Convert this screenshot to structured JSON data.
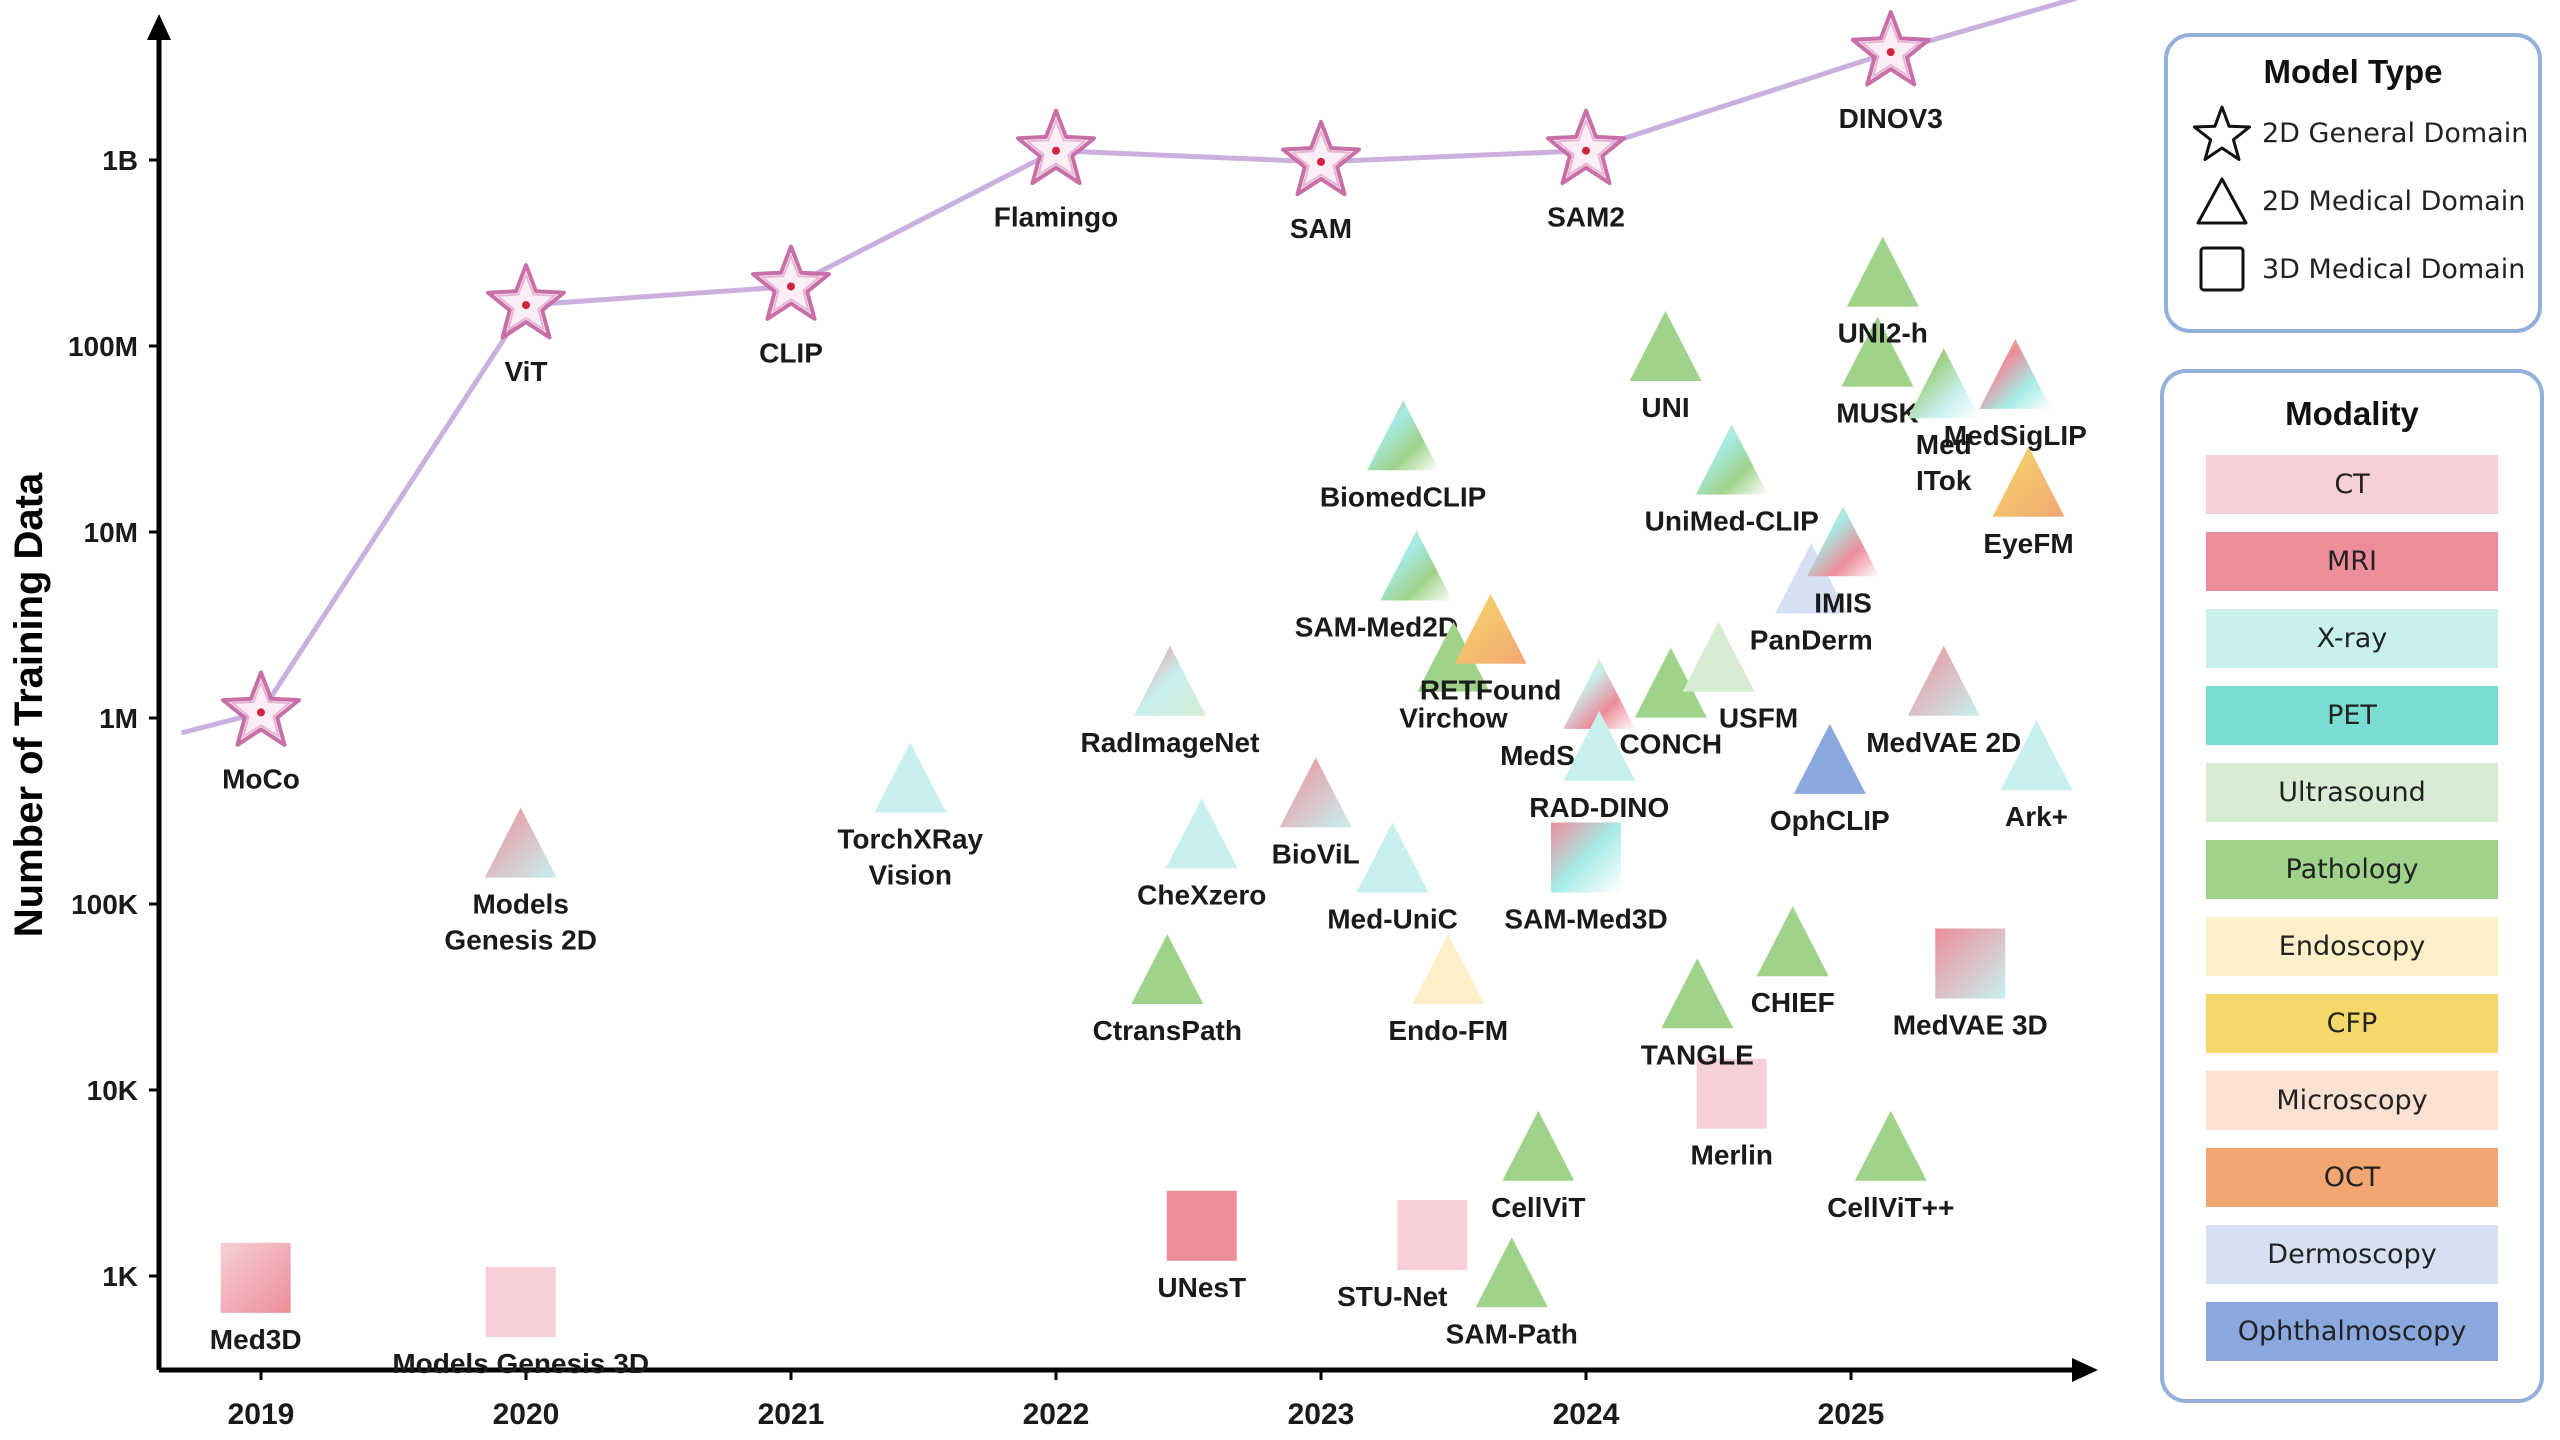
{
  "chart_data": {
    "type": "scatter",
    "ylabel": "Number of Training Data",
    "xlabel": "",
    "x_ticks": [
      "2019",
      "2020",
      "2021",
      "2022",
      "2023",
      "2024",
      "2025"
    ],
    "y_ticks": [
      "1K",
      "10K",
      "100K",
      "1M",
      "10M",
      "100M",
      "1B"
    ],
    "ylim_log10": [
      2.5,
      9.8
    ],
    "xlim": [
      2018.6,
      2025.9
    ],
    "general_trend_line": [
      {
        "year": 2018.7,
        "log10": 5.92
      },
      {
        "year": 2019.0,
        "log10": 6.03
      },
      {
        "year": 2020.0,
        "log10": 8.22
      },
      {
        "year": 2021.0,
        "log10": 8.32
      },
      {
        "year": 2022.0,
        "log10": 9.05
      },
      {
        "year": 2023.0,
        "log10": 8.99
      },
      {
        "year": 2024.0,
        "log10": 9.05
      },
      {
        "year": 2025.15,
        "log10": 9.58
      },
      {
        "year": 2025.85,
        "log10": 9.87
      }
    ],
    "models": [
      {
        "name": "MoCo",
        "type": "star",
        "year": 2019.0,
        "log10": 6.03,
        "colors": [
          "#c86fa8"
        ],
        "label_side": "below"
      },
      {
        "name": "ViT",
        "type": "star",
        "year": 2020.0,
        "log10": 8.22,
        "colors": [
          "#c86fa8"
        ],
        "label_side": "below"
      },
      {
        "name": "CLIP",
        "type": "star",
        "year": 2021.0,
        "log10": 8.32,
        "colors": [
          "#c86fa8"
        ],
        "label_side": "below"
      },
      {
        "name": "Flamingo",
        "type": "star",
        "year": 2022.0,
        "log10": 9.05,
        "colors": [
          "#c86fa8"
        ],
        "label_side": "below"
      },
      {
        "name": "SAM",
        "type": "star",
        "year": 2023.0,
        "log10": 8.99,
        "colors": [
          "#c86fa8"
        ],
        "label_side": "below"
      },
      {
        "name": "SAM2",
        "type": "star",
        "year": 2024.0,
        "log10": 9.05,
        "colors": [
          "#c86fa8"
        ],
        "label_side": "below"
      },
      {
        "name": "DINOV3",
        "type": "star",
        "year": 2025.15,
        "log10": 9.58,
        "colors": [
          "#c86fa8"
        ],
        "label_side": "below"
      },
      {
        "name": "Med3D",
        "type": "square",
        "year": 2018.98,
        "log10": 2.99,
        "colors": [
          "#f6d0d6",
          "#ec8d99"
        ],
        "label_side": "below"
      },
      {
        "name": "Models Genesis 3D",
        "type": "square",
        "year": 2019.98,
        "log10": 2.86,
        "colors": [
          "#f6d0d6"
        ],
        "label_side": "below"
      },
      {
        "name": "UNesT",
        "type": "square",
        "year": 2022.55,
        "log10": 3.27,
        "colors": [
          "#ec8d99"
        ],
        "label_side": "below"
      },
      {
        "name": "STU-Net",
        "type": "square",
        "year": 2023.42,
        "log10": 3.22,
        "colors": [
          "#f6d0d6"
        ],
        "label_side": "below-left"
      },
      {
        "name": "SAM-Med3D",
        "type": "square",
        "year": 2024.0,
        "log10": 5.25,
        "colors": [
          "#ec8d99",
          "#a6ebe6",
          "#ffffff"
        ],
        "label_side": "below"
      },
      {
        "name": "Merlin",
        "type": "square",
        "year": 2024.55,
        "log10": 3.98,
        "colors": [
          "#f6d0d6"
        ],
        "label_side": "below"
      },
      {
        "name": "MedVAE 3D",
        "type": "square",
        "year": 2025.45,
        "log10": 4.68,
        "colors": [
          "#ec8d99",
          "#c8f0ef"
        ],
        "label_side": "below"
      },
      {
        "name": "Models\nGenesis 2D",
        "type": "triangle",
        "year": 2019.98,
        "log10": 5.33,
        "colors": [
          "#ec8d99",
          "#c8f0ef"
        ],
        "label_side": "below"
      },
      {
        "name": "TorchXRay\nVision",
        "type": "triangle",
        "year": 2021.45,
        "log10": 5.68,
        "colors": [
          "#c8f0ef"
        ],
        "label_side": "below"
      },
      {
        "name": "RadImageNet",
        "type": "triangle",
        "year": 2022.43,
        "log10": 6.2,
        "colors": [
          "#ec8d99",
          "#c8f0ef",
          "#d7ecd2"
        ],
        "label_side": "below"
      },
      {
        "name": "CheXzero",
        "type": "triangle",
        "year": 2022.55,
        "log10": 5.38,
        "colors": [
          "#c8f0ef"
        ],
        "label_side": "below"
      },
      {
        "name": "CtransPath",
        "type": "triangle",
        "year": 2022.42,
        "log10": 4.65,
        "colors": [
          "#9fd28a"
        ],
        "label_side": "below"
      },
      {
        "name": "BioViL",
        "type": "triangle",
        "year": 2022.98,
        "log10": 5.6,
        "colors": [
          "#ec8d99",
          "#c8f0ef"
        ],
        "label_side": "below"
      },
      {
        "name": "Med-UniC",
        "type": "triangle",
        "year": 2023.27,
        "log10": 5.25,
        "colors": [
          "#c8f0ef"
        ],
        "label_side": "below"
      },
      {
        "name": "BiomedCLIP",
        "type": "triangle",
        "year": 2023.31,
        "log10": 7.52,
        "colors": [
          "#ec8d99",
          "#a6ebe6",
          "#9fd28a",
          "#ffffff"
        ],
        "label_side": "below"
      },
      {
        "name": "SAM-Med2D",
        "type": "triangle",
        "year": 2023.36,
        "log10": 6.82,
        "colors": [
          "#f5d86a",
          "#a6ebe6",
          "#9fd28a",
          "#ffffff"
        ],
        "label_side": "below-left"
      },
      {
        "name": "Endo-FM",
        "type": "triangle",
        "year": 2023.48,
        "log10": 4.65,
        "colors": [
          "#fdf0c8"
        ],
        "label_side": "below"
      },
      {
        "name": "Virchow",
        "type": "triangle",
        "year": 2023.5,
        "log10": 6.33,
        "colors": [
          "#9fd28a"
        ],
        "label_side": "below"
      },
      {
        "name": "RETFound",
        "type": "triangle",
        "year": 2023.64,
        "log10": 6.48,
        "colors": [
          "#f5d86a",
          "#f2a773"
        ],
        "label_side": "below"
      },
      {
        "name": "MedSAM",
        "type": "triangle",
        "year": 2024.05,
        "log10": 6.13,
        "colors": [
          "#f5d86a",
          "#c8f0ef",
          "#ec8d99",
          "#ffffff"
        ],
        "label_side": "below-left"
      },
      {
        "name": "RAD-DINO",
        "type": "triangle",
        "year": 2024.05,
        "log10": 5.85,
        "colors": [
          "#c8f0ef"
        ],
        "label_side": "below"
      },
      {
        "name": "UNI",
        "type": "triangle",
        "year": 2024.3,
        "log10": 8.0,
        "colors": [
          "#9fd28a"
        ],
        "label_side": "below"
      },
      {
        "name": "CONCH",
        "type": "triangle",
        "year": 2024.32,
        "log10": 6.19,
        "colors": [
          "#9fd28a"
        ],
        "label_side": "below"
      },
      {
        "name": "USFM",
        "type": "triangle",
        "year": 2024.5,
        "log10": 6.33,
        "colors": [
          "#d7ecd2"
        ],
        "label_side": "below-right"
      },
      {
        "name": "UniMed-CLIP",
        "type": "triangle",
        "year": 2024.55,
        "log10": 7.39,
        "colors": [
          "#f5d86a",
          "#a6ebe6",
          "#9fd28a",
          "#ffffff"
        ],
        "label_side": "below"
      },
      {
        "name": "TANGLE",
        "type": "triangle",
        "year": 2024.42,
        "log10": 4.52,
        "colors": [
          "#9fd28a"
        ],
        "label_side": "below"
      },
      {
        "name": "CHIEF",
        "type": "triangle",
        "year": 2024.78,
        "log10": 4.8,
        "colors": [
          "#9fd28a"
        ],
        "label_side": "below"
      },
      {
        "name": "CellViT",
        "type": "triangle",
        "year": 2023.82,
        "log10": 3.7,
        "colors": [
          "#9fd28a"
        ],
        "label_side": "below"
      },
      {
        "name": "SAM-Path",
        "type": "triangle",
        "year": 2023.72,
        "log10": 3.02,
        "colors": [
          "#9fd28a"
        ],
        "label_side": "below"
      },
      {
        "name": "PanDerm",
        "type": "triangle",
        "year": 2024.85,
        "log10": 6.75,
        "colors": [
          "#d6e0f3"
        ],
        "label_side": "below"
      },
      {
        "name": "IMIS",
        "type": "triangle",
        "year": 2024.97,
        "log10": 6.95,
        "colors": [
          "#f5d86a",
          "#a6ebe6",
          "#ec8d99",
          "#ffffff"
        ],
        "label_side": "below"
      },
      {
        "name": "OphCLIP",
        "type": "triangle",
        "year": 2024.92,
        "log10": 5.78,
        "colors": [
          "#8aa7de"
        ],
        "label_side": "below"
      },
      {
        "name": "MUSK",
        "type": "triangle",
        "year": 2025.1,
        "log10": 7.97,
        "colors": [
          "#9fd28a"
        ],
        "label_side": "below"
      },
      {
        "name": "UNI2-h",
        "type": "triangle",
        "year": 2025.12,
        "log10": 8.4,
        "colors": [
          "#9fd28a"
        ],
        "label_side": "below"
      },
      {
        "name": "Med\nITok",
        "type": "triangle",
        "year": 2025.35,
        "log10": 7.8,
        "colors": [
          "#ec8d99",
          "#9fd28a",
          "#c8f0ef",
          "#ffffff"
        ],
        "label_side": "below"
      },
      {
        "name": "MedSigLIP",
        "type": "triangle",
        "year": 2025.62,
        "log10": 7.85,
        "colors": [
          "#f5d86a",
          "#ec8d99",
          "#a6ebe6",
          "#ffffff"
        ],
        "label_side": "below"
      },
      {
        "name": "EyeFM",
        "type": "triangle",
        "year": 2025.67,
        "log10": 7.27,
        "colors": [
          "#f5d86a",
          "#f2a773"
        ],
        "label_side": "below"
      },
      {
        "name": "MedVAE 2D",
        "type": "triangle",
        "year": 2025.35,
        "log10": 6.2,
        "colors": [
          "#ec8d99",
          "#c8f0ef"
        ],
        "label_side": "below"
      },
      {
        "name": "Ark+",
        "type": "triangle",
        "year": 2025.7,
        "log10": 5.8,
        "colors": [
          "#c8f0ef"
        ],
        "label_side": "below"
      },
      {
        "name": "CellViT++",
        "type": "triangle",
        "year": 2025.15,
        "log10": 3.7,
        "colors": [
          "#9fd28a"
        ],
        "label_side": "below"
      }
    ]
  },
  "legend": {
    "model_type_title": "Model Type",
    "model_types": [
      {
        "label": "2D General Domain",
        "icon": "star-icon"
      },
      {
        "label": "2D Medical Domain",
        "icon": "triangle-icon"
      },
      {
        "label": "3D Medical Domain",
        "icon": "square-icon"
      }
    ],
    "modality_title": "Modality",
    "modalities": [
      {
        "label": "CT",
        "color": "#f6d0d6"
      },
      {
        "label": "MRI",
        "color": "#ec8d99"
      },
      {
        "label": "X-ray",
        "color": "#c8f0ef"
      },
      {
        "label": "PET",
        "color": "#79ddd1"
      },
      {
        "label": "Ultrasound",
        "color": "#d7ecd2"
      },
      {
        "label": "Pathology",
        "color": "#9fd28a"
      },
      {
        "label": "Endoscopy",
        "color": "#fdf0c8"
      },
      {
        "label": "CFP",
        "color": "#f5d86a"
      },
      {
        "label": "Microscopy",
        "color": "#fbe1d2"
      },
      {
        "label": "OCT",
        "color": "#f2a773"
      },
      {
        "label": "Dermoscopy",
        "color": "#d6e0f3"
      },
      {
        "label": "Ophthalmoscopy",
        "color": "#8aa7de"
      }
    ]
  }
}
